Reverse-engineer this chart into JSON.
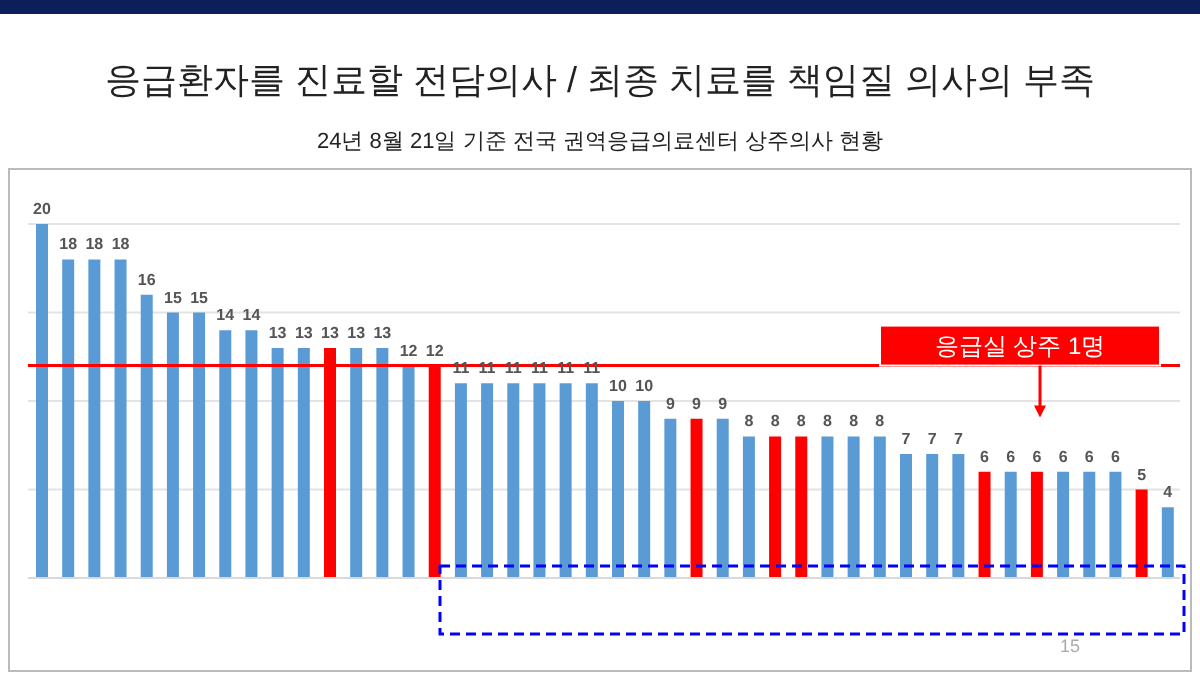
{
  "chart_data": {
    "type": "bar",
    "title": "응급환자를 진료할 전담의사 / 최종 치료를 책임질 의사의 부족",
    "subtitle": "24년 8월 21일 기준 전국 권역응급의료센터 상주의사 현황",
    "categories": [
      null,
      null,
      null,
      null,
      null,
      null,
      null,
      null,
      null,
      null,
      null,
      null,
      null,
      null,
      null,
      null,
      null,
      null,
      null,
      null,
      null,
      null,
      null,
      null,
      null,
      null,
      null,
      null,
      null,
      null,
      null,
      null,
      null,
      null,
      null,
      null,
      null,
      null,
      null,
      null,
      null,
      null,
      null,
      null
    ],
    "values": [
      20,
      18,
      18,
      18,
      16,
      15,
      15,
      14,
      14,
      13,
      13,
      13,
      13,
      13,
      12,
      12,
      11,
      11,
      11,
      11,
      11,
      11,
      10,
      10,
      9,
      9,
      9,
      8,
      8,
      8,
      8,
      8,
      8,
      7,
      7,
      7,
      6,
      6,
      6,
      6,
      6,
      6,
      5,
      4
    ],
    "colors": [
      "#5b9bd5",
      "#5b9bd5",
      "#5b9bd5",
      "#5b9bd5",
      "#5b9bd5",
      "#5b9bd5",
      "#5b9bd5",
      "#5b9bd5",
      "#5b9bd5",
      "#5b9bd5",
      "#5b9bd5",
      "#ff0000",
      "#5b9bd5",
      "#5b9bd5",
      "#5b9bd5",
      "#ff0000",
      "#5b9bd5",
      "#5b9bd5",
      "#5b9bd5",
      "#5b9bd5",
      "#5b9bd5",
      "#5b9bd5",
      "#5b9bd5",
      "#5b9bd5",
      "#5b9bd5",
      "#ff0000",
      "#5b9bd5",
      "#5b9bd5",
      "#ff0000",
      "#ff0000",
      "#5b9bd5",
      "#5b9bd5",
      "#5b9bd5",
      "#5b9bd5",
      "#5b9bd5",
      "#5b9bd5",
      "#ff0000",
      "#5b9bd5",
      "#ff0000",
      "#5b9bd5",
      "#5b9bd5",
      "#5b9bd5",
      "#ff0000",
      "#5b9bd5"
    ],
    "ylim": [
      0,
      20
    ],
    "yticks": [
      {
        "value": 0,
        "label": null
      },
      {
        "value": 5,
        "label": null
      },
      {
        "value": 10,
        "label": null
      },
      {
        "value": 15,
        "label": null
      },
      {
        "value": 20,
        "label": null
      }
    ],
    "grid": "y",
    "data_labels": true,
    "ref_lines": [
      {
        "axis": "y",
        "value": 12,
        "label": "응급실 상주 1명",
        "color": "#ff0000"
      }
    ],
    "annotations": [
      "15"
    ]
  }
}
